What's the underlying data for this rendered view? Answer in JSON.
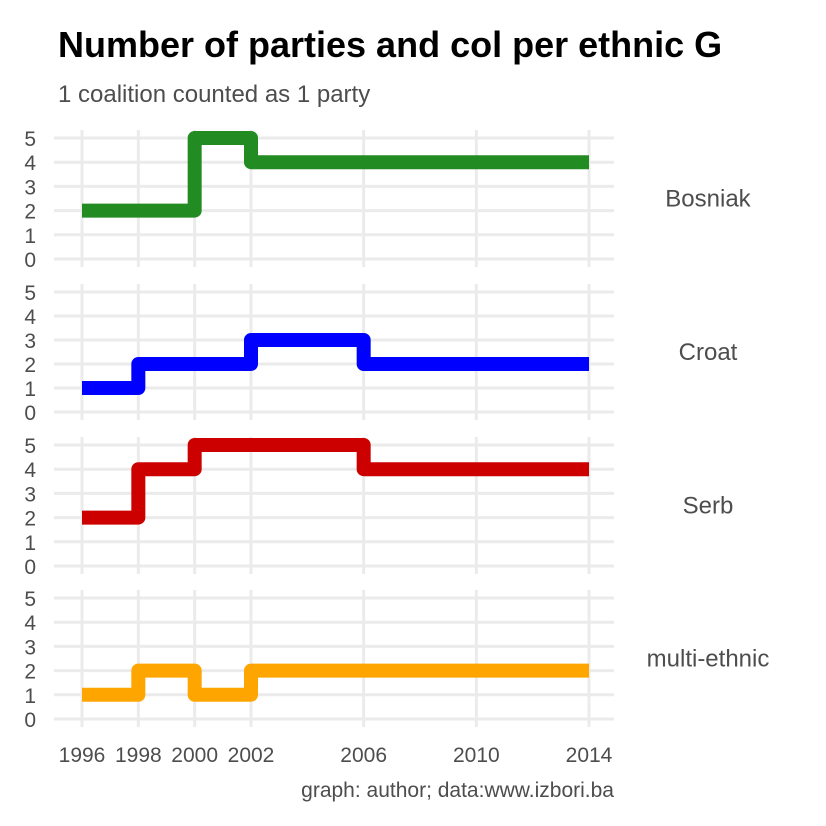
{
  "chart_data": {
    "type": "line",
    "step": true,
    "facet": "rows",
    "title": "Number of parties and col per ethnic G",
    "subtitle": "1 coalition counted as 1 party",
    "caption": "graph: author; data:www.izbori.ba",
    "x": [
      1996,
      1998,
      2000,
      2002,
      2006,
      2010,
      2014
    ],
    "x_ticks": [
      1996,
      1998,
      2000,
      2002,
      2006,
      2010,
      2014
    ],
    "y_ticks": [
      0,
      1,
      2,
      3,
      4,
      5
    ],
    "xlim": [
      1996,
      2014
    ],
    "ylim": [
      0,
      5
    ],
    "grid": true,
    "legend": "none",
    "series": [
      {
        "name": "Bosniak",
        "color": "#228b22",
        "values": [
          2,
          2,
          5,
          4,
          4,
          4,
          4
        ]
      },
      {
        "name": "Croat",
        "color": "#0000ff",
        "values": [
          1,
          2,
          2,
          3,
          2,
          2,
          2
        ]
      },
      {
        "name": "Serb",
        "color": "#cd0000",
        "values": [
          2,
          4,
          5,
          5,
          4,
          4,
          4
        ]
      },
      {
        "name": "multi-ethnic",
        "color": "#ffa500",
        "values": [
          1,
          2,
          1,
          2,
          2,
          2,
          2
        ]
      }
    ]
  }
}
